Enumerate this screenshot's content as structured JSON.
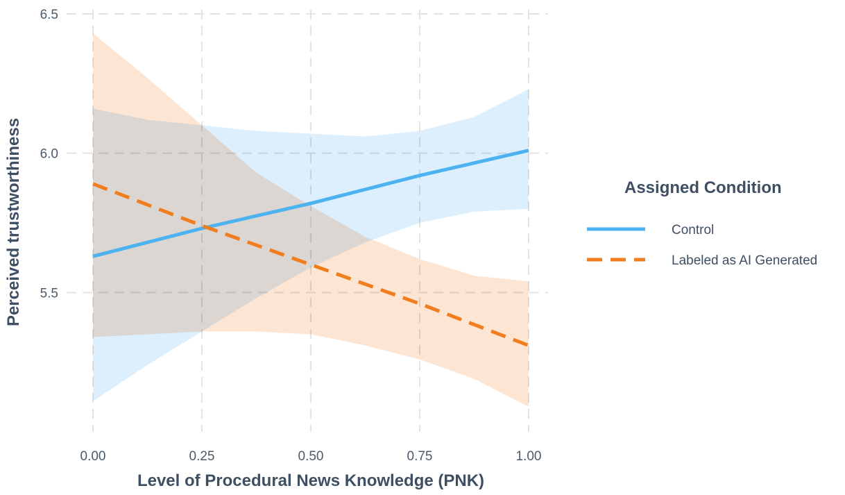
{
  "chart_data": {
    "type": "line",
    "xlabel": "Level of Procedural News Knowledge (PNK)",
    "ylabel": "Perceived trustworthiness",
    "xlim": [
      0,
      1
    ],
    "ylim": [
      5.0,
      6.5
    ],
    "x_ticks": [
      "0.00",
      "0.25",
      "0.50",
      "0.75",
      "1.00"
    ],
    "y_ticks": [
      "5.5",
      "6.0",
      "6.5"
    ],
    "grid": true,
    "legend": {
      "title": "Assigned Condition",
      "placement": "right"
    },
    "series": [
      {
        "name": "Control",
        "color": "#4db3f0",
        "band_color": "#cfe8fb",
        "line_style": "solid",
        "x": [
          0,
          0.25,
          0.5,
          0.75,
          1
        ],
        "y": [
          5.63,
          5.73,
          5.82,
          5.92,
          6.01
        ],
        "ci_x": [
          0,
          0.125,
          0.25,
          0.375,
          0.5,
          0.625,
          0.75,
          0.875,
          1
        ],
        "ci_lower": [
          5.11,
          5.24,
          5.36,
          5.48,
          5.59,
          5.68,
          5.75,
          5.79,
          5.8
        ],
        "ci_upper": [
          6.16,
          6.12,
          6.1,
          6.08,
          6.07,
          6.06,
          6.08,
          6.13,
          6.23
        ]
      },
      {
        "name": "Labeled as AI Generated",
        "color": "#f07d1e",
        "band_color": "#fbd3b8",
        "line_style": "dashed",
        "x": [
          0,
          0.25,
          0.5,
          0.75,
          1
        ],
        "y": [
          5.89,
          5.74,
          5.6,
          5.46,
          5.31
        ],
        "ci_x": [
          0,
          0.125,
          0.25,
          0.375,
          0.5,
          0.625,
          0.75,
          0.875,
          1
        ],
        "ci_lower": [
          5.34,
          5.35,
          5.36,
          5.36,
          5.35,
          5.31,
          5.26,
          5.19,
          5.09
        ],
        "ci_upper": [
          6.43,
          6.27,
          6.1,
          5.93,
          5.81,
          5.7,
          5.62,
          5.56,
          5.54
        ]
      }
    ]
  }
}
